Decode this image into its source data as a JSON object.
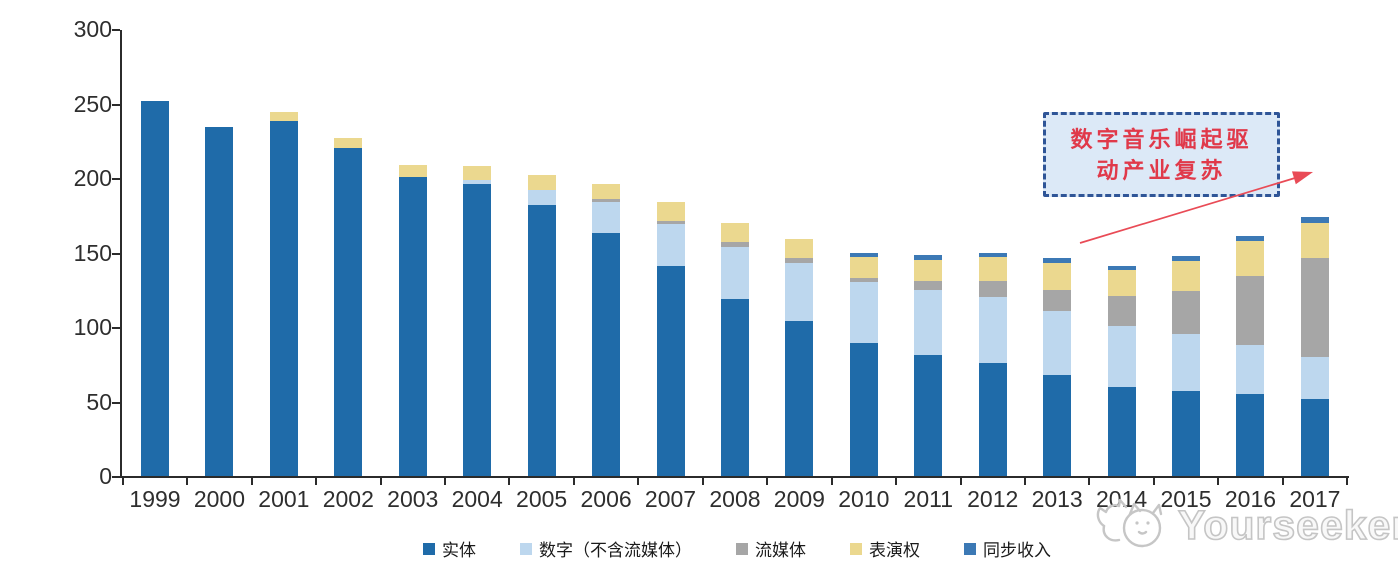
{
  "chart_data": {
    "type": "bar",
    "subtype": "stacked",
    "title": "",
    "xlabel": "",
    "ylabel": "",
    "ylim": [
      0,
      300
    ],
    "y_ticks": [
      0,
      50,
      100,
      150,
      200,
      250,
      300
    ],
    "grid": false,
    "legend_position": "bottom",
    "categories": [
      "1999",
      "2000",
      "2001",
      "2002",
      "2003",
      "2004",
      "2005",
      "2006",
      "2007",
      "2008",
      "2009",
      "2010",
      "2011",
      "2012",
      "2013",
      "2014",
      "2015",
      "2016",
      "2017"
    ],
    "series": [
      {
        "key": "physical",
        "name": "实体",
        "color": "#1F6BA9",
        "values": [
          252,
          234,
          238,
          220,
          201,
          196,
          182,
          163,
          141,
          119,
          104,
          89,
          81,
          76,
          68,
          60,
          57,
          55,
          52
        ]
      },
      {
        "key": "digital",
        "name": "数字（不含流媒体）",
        "color": "#BDD7EE",
        "values": [
          0,
          0,
          0,
          0,
          0,
          3,
          10,
          21,
          28,
          35,
          39,
          41,
          44,
          44,
          43,
          41,
          38,
          33,
          28
        ]
      },
      {
        "key": "streaming",
        "name": "流媒体",
        "color": "#A6A6A6",
        "values": [
          0,
          0,
          0,
          0,
          0,
          0,
          0,
          2,
          2,
          3,
          3,
          3,
          6,
          11,
          14,
          20,
          29,
          46,
          66
        ]
      },
      {
        "key": "performance",
        "name": "表演权",
        "color": "#EBD88F",
        "values": [
          0,
          0,
          6,
          7,
          8,
          9,
          10,
          10,
          13,
          13,
          13,
          14,
          14,
          16,
          18,
          17,
          20,
          24,
          24
        ]
      },
      {
        "key": "sync",
        "name": "同步收入",
        "color": "#3C79B5",
        "values": [
          0,
          0,
          0,
          0,
          0,
          0,
          0,
          0,
          0,
          0,
          0,
          3,
          3,
          3,
          3,
          3,
          4,
          3,
          4
        ]
      }
    ]
  },
  "annotation": {
    "line1": "数字音乐崛起驱",
    "line2": "动产业复苏",
    "text_color": "#E0394A",
    "border_color": "#2F5597",
    "fill_color": "#DCE9F7",
    "arrow_color": "#E94B56"
  },
  "watermark": {
    "label": "Yourseeker"
  },
  "axis": {
    "color": "#2b2b2b",
    "label_color": "#2e2e2e"
  }
}
